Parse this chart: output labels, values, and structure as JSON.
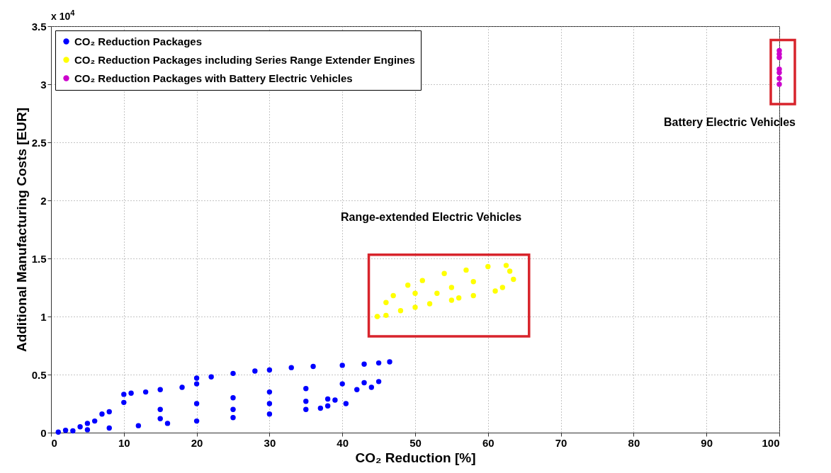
{
  "chart_data": {
    "type": "scatter",
    "xlabel": "CO₂ Reduction [%]",
    "ylabel": "Additional Manufacturing Costs [EUR]",
    "xlim": [
      0,
      100
    ],
    "xticks": [
      0,
      10,
      20,
      30,
      40,
      50,
      60,
      70,
      80,
      90,
      100
    ],
    "ylim": [
      0,
      3.5
    ],
    "yticks": [
      0,
      0.5,
      1,
      1.5,
      2,
      2.5,
      3,
      3.5
    ],
    "grid": true,
    "legend": "top left",
    "marker": "circle",
    "series": [
      {
        "name": "CO₂ Reduction Packages",
        "color": "#0000ff",
        "x": [
          1,
          3,
          5,
          8,
          12,
          16,
          20,
          25,
          30,
          35,
          40.5,
          2,
          4,
          5,
          6,
          7,
          8,
          10,
          10,
          11,
          13,
          15,
          18,
          20,
          20,
          22,
          25,
          28,
          30,
          33,
          36,
          40,
          43,
          45,
          46.5,
          40,
          43,
          45,
          44,
          42,
          35,
          38,
          39,
          38,
          37,
          15,
          20,
          25,
          30,
          35,
          25,
          30,
          15
        ],
        "values": [
          0.005,
          0.015,
          0.025,
          0.04,
          0.06,
          0.08,
          0.1,
          0.13,
          0.16,
          0.2,
          0.25,
          0.02,
          0.05,
          0.08,
          0.1,
          0.16,
          0.18,
          0.26,
          0.33,
          0.34,
          0.35,
          0.37,
          0.39,
          0.42,
          0.47,
          0.48,
          0.51,
          0.53,
          0.54,
          0.56,
          0.57,
          0.58,
          0.59,
          0.6,
          0.61,
          0.42,
          0.43,
          0.44,
          0.39,
          0.37,
          0.27,
          0.29,
          0.28,
          0.23,
          0.21,
          0.2,
          0.25,
          0.3,
          0.35,
          0.38,
          0.2,
          0.25,
          0.12
        ]
      },
      {
        "name": "CO₂ Reduction Packages including Series Range Extender Engines",
        "color": "#ffff00",
        "x": [
          44.8,
          46,
          48,
          50,
          52,
          55,
          58,
          61,
          62,
          63.5,
          63,
          62.5,
          60,
          57,
          54,
          51,
          49,
          47,
          46,
          50,
          55,
          58,
          53,
          56
        ],
        "values": [
          1,
          1.01,
          1.05,
          1.08,
          1.11,
          1.14,
          1.18,
          1.22,
          1.25,
          1.32,
          1.39,
          1.44,
          1.43,
          1.4,
          1.37,
          1.31,
          1.27,
          1.18,
          1.12,
          1.2,
          1.25,
          1.3,
          1.2,
          1.16
        ]
      },
      {
        "name": "CO₂ Reduction Packages with Battery Electric Vehicles",
        "color": "#cc00cc",
        "x": [
          100,
          100,
          100,
          100,
          100,
          100,
          100
        ],
        "values": [
          3,
          3.05,
          3.1,
          3.13,
          3.23,
          3.26,
          3.29
        ]
      }
    ],
    "annotations": [
      "x 10$^{4}$",
      "Range-extended Electric Vehicles",
      "Battery Electric Vehicles"
    ]
  }
}
